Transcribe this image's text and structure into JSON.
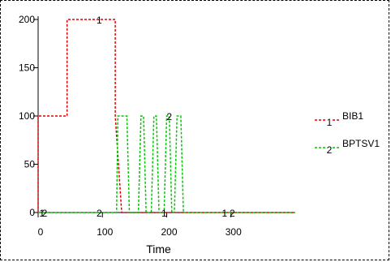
{
  "chart_data": {
    "type": "line",
    "title": "",
    "xlabel": "Time",
    "ylabel": "",
    "xlim": [
      0,
      400
    ],
    "ylim": [
      0,
      200
    ],
    "xticks": [
      0,
      100,
      200,
      300
    ],
    "yticks": [
      0,
      50,
      100,
      150,
      200
    ],
    "grid": false,
    "legend": "right",
    "series": [
      {
        "name": "BIB1",
        "marker_label": "1",
        "color": "#e00000",
        "line_style": "dashed",
        "x": [
          0,
          0,
          45,
          45,
          120,
          120,
          130,
          130,
          400
        ],
        "y": [
          0,
          100,
          100,
          200,
          200,
          100,
          0,
          0,
          0
        ]
      },
      {
        "name": "BPTSV1",
        "marker_label": "2",
        "color": "#00c800",
        "line_style": "dashed",
        "x": [
          0,
          122,
          124,
          138,
          142,
          156,
          160,
          164,
          168,
          176,
          180,
          184,
          188,
          196,
          200,
          204,
          208,
          212,
          216,
          222,
          226,
          230,
          400
        ],
        "y": [
          0,
          0,
          100,
          100,
          0,
          0,
          100,
          100,
          0,
          0,
          100,
          100,
          0,
          0,
          100,
          100,
          0,
          0,
          100,
          100,
          0,
          0,
          0
        ]
      }
    ],
    "curve_markers": [
      {
        "label": "1",
        "x": 95,
        "y": 200
      },
      {
        "label": "2",
        "x": 204,
        "y": 100
      },
      {
        "label": "1",
        "x": 6,
        "y": 0
      },
      {
        "label": "2",
        "x": 10,
        "y": 0
      },
      {
        "label": "2",
        "x": 95,
        "y": 0
      },
      {
        "label": "1",
        "x": 196,
        "y": 0
      },
      {
        "label": "1",
        "x": 290,
        "y": 0
      },
      {
        "label": "2",
        "x": 302,
        "y": 0
      }
    ]
  }
}
